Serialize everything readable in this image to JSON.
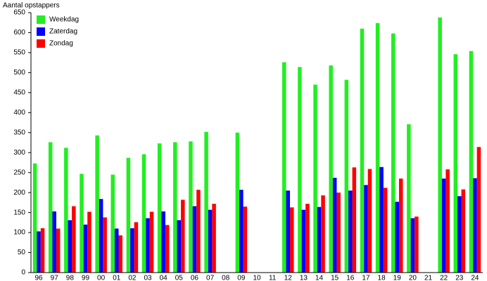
{
  "chart_data": {
    "type": "bar",
    "y_label": "Aantal opstappers",
    "categories": [
      "96",
      "97",
      "98",
      "99",
      "00",
      "01",
      "02",
      "03",
      "04",
      "05",
      "06",
      "07",
      "08",
      "09",
      "10",
      "11",
      "12",
      "13",
      "14",
      "15",
      "16",
      "17",
      "18",
      "19",
      "20",
      "21",
      "22",
      "23",
      "24"
    ],
    "series": [
      {
        "name": "Weekdag",
        "color": "#22ee22",
        "values": [
          273,
          326,
          312,
          247,
          343,
          245,
          287,
          296,
          323,
          326,
          328,
          352,
          null,
          350,
          null,
          null,
          526,
          514,
          470,
          518,
          482,
          610,
          624,
          598,
          371,
          null,
          638,
          546,
          554
        ]
      },
      {
        "name": "Zaterdag",
        "color": "#0000ff",
        "values": [
          103,
          153,
          131,
          120,
          184,
          110,
          111,
          136,
          153,
          131,
          166,
          157,
          null,
          207,
          null,
          null,
          205,
          157,
          164,
          237,
          205,
          219,
          264,
          177,
          136,
          null,
          235,
          191,
          236
        ]
      },
      {
        "name": "Zondag",
        "color": "#ff0000",
        "values": [
          111,
          110,
          166,
          152,
          138,
          93,
          126,
          152,
          119,
          182,
          207,
          172,
          null,
          165,
          null,
          null,
          163,
          172,
          193,
          200,
          263,
          259,
          212,
          235,
          140,
          null,
          258,
          208,
          314
        ]
      }
    ],
    "ylim": [
      0,
      650
    ],
    "yticks": [
      0,
      50,
      100,
      150,
      200,
      250,
      300,
      350,
      400,
      450,
      500,
      550,
      600,
      650
    ],
    "legend": "top-left",
    "grid": false
  }
}
